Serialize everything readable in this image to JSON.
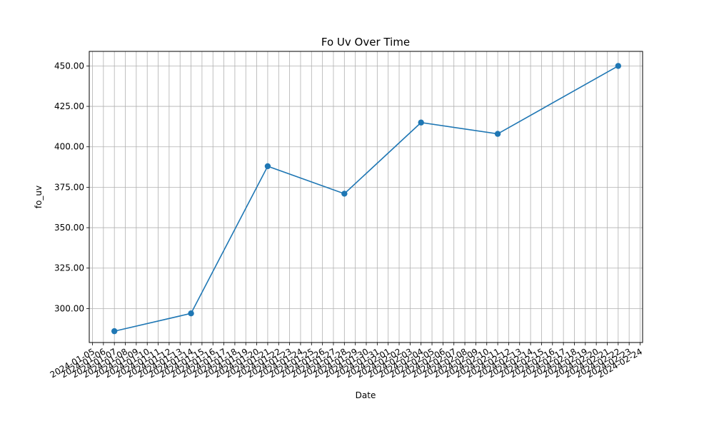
{
  "chart_data": {
    "type": "line",
    "title": "Fo Uv Over Time",
    "xlabel": "Date",
    "ylabel": "fo_uv",
    "x_tick_labels": [
      "2024-01-05",
      "2024-01-06",
      "2024-01-07",
      "2024-01-08",
      "2024-01-09",
      "2024-01-10",
      "2024-01-11",
      "2024-01-12",
      "2024-01-13",
      "2024-01-14",
      "2024-01-15",
      "2024-01-16",
      "2024-01-17",
      "2024-01-18",
      "2024-01-19",
      "2024-01-20",
      "2024-01-21",
      "2024-01-22",
      "2024-01-23",
      "2024-01-24",
      "2024-01-25",
      "2024-01-26",
      "2024-01-27",
      "2024-01-28",
      "2024-01-29",
      "2024-01-30",
      "2024-01-31",
      "2024-02-01",
      "2024-02-02",
      "2024-02-03",
      "2024-02-04",
      "2024-02-05",
      "2024-02-06",
      "2024-02-07",
      "2024-02-08",
      "2024-02-09",
      "2024-02-10",
      "2024-02-11",
      "2024-02-12",
      "2024-02-13",
      "2024-02-14",
      "2024-02-15",
      "2024-02-16",
      "2024-02-17",
      "2024-02-18",
      "2024-02-19",
      "2024-02-20",
      "2024-02-21",
      "2024-02-22",
      "2024-02-23",
      "2024-02-24"
    ],
    "x": [
      "2024-01-07",
      "2024-01-14",
      "2024-01-21",
      "2024-01-28",
      "2024-02-04",
      "2024-02-11",
      "2024-02-22"
    ],
    "series": [
      {
        "values": [
          286,
          297,
          388,
          371,
          415,
          408,
          450
        ]
      }
    ],
    "y_ticks": [
      300,
      325,
      350,
      375,
      400,
      425,
      450
    ],
    "y_tick_labels": [
      "300.00",
      "325.00",
      "350.00",
      "375.00",
      "400.00",
      "425.00",
      "450.00"
    ],
    "ylim": [
      279,
      459
    ],
    "grid": true,
    "line_color": "#1f77b4"
  }
}
